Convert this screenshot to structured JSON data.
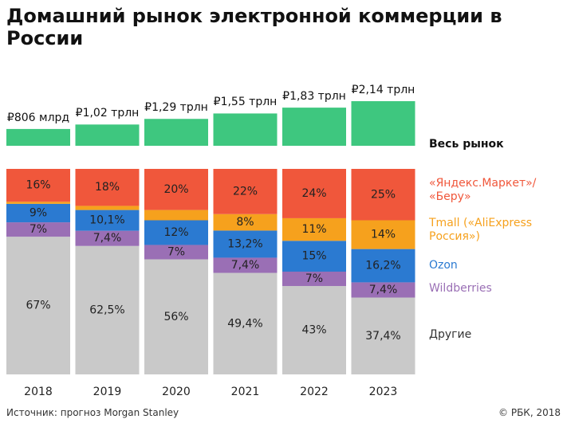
{
  "title": "Домашний рынок электронной коммерции в России",
  "source": "Источник: прогноз Morgan Stanley",
  "copyright": "© РБК, 2018",
  "chart_data": {
    "type": "stacked_bar",
    "categories": [
      "2018",
      "2019",
      "2020",
      "2021",
      "2022",
      "2023"
    ],
    "total": {
      "name": "Весь рынок",
      "color": "#3ec77f",
      "values": [
        0.806,
        1.02,
        1.29,
        1.55,
        1.83,
        2.14
      ],
      "value_labels": [
        "₽806 млрд",
        "₽1,02 трлн",
        "₽1,29 трлн",
        "₽1,55 трлн",
        "₽1,83 трлн",
        "₽2,14 трлн"
      ]
    },
    "ylim": [
      0,
      100
    ],
    "series": [
      {
        "name": "Другие",
        "color": "#c9c9c9",
        "values": [
          67,
          62.5,
          56,
          49.4,
          43,
          37.4
        ],
        "value_labels": [
          "67%",
          "62,5%",
          "56%",
          "49,4%",
          "43%",
          "37,4%"
        ]
      },
      {
        "name": "Wildberries",
        "color": "#9a6fb5",
        "values": [
          7,
          7.4,
          7,
          7.4,
          7,
          7.4
        ],
        "value_labels": [
          "7%",
          "7,4%",
          "7%",
          "7,4%",
          "7%",
          "7,4%"
        ]
      },
      {
        "name": "Ozon",
        "color": "#2b7ad1",
        "values": [
          9,
          10.1,
          12,
          13.2,
          15,
          16.2
        ],
        "value_labels": [
          "9%",
          "10,1%",
          "12%",
          "13,2%",
          "15%",
          "16,2%"
        ]
      },
      {
        "name": "Tmall («AliExpress Россия»)",
        "color": "#f6a11d",
        "values": [
          1,
          2,
          5,
          8,
          11,
          14
        ],
        "value_labels": [
          null,
          null,
          null,
          "8%",
          "11%",
          "14%"
        ]
      },
      {
        "name": "«Яндекс.Маркет»/ «Беру»",
        "color": "#f0573b",
        "values": [
          16,
          18,
          20,
          22,
          24,
          25
        ],
        "value_labels": [
          "16%",
          "18%",
          "20%",
          "22%",
          "24%",
          "25%"
        ]
      }
    ]
  }
}
